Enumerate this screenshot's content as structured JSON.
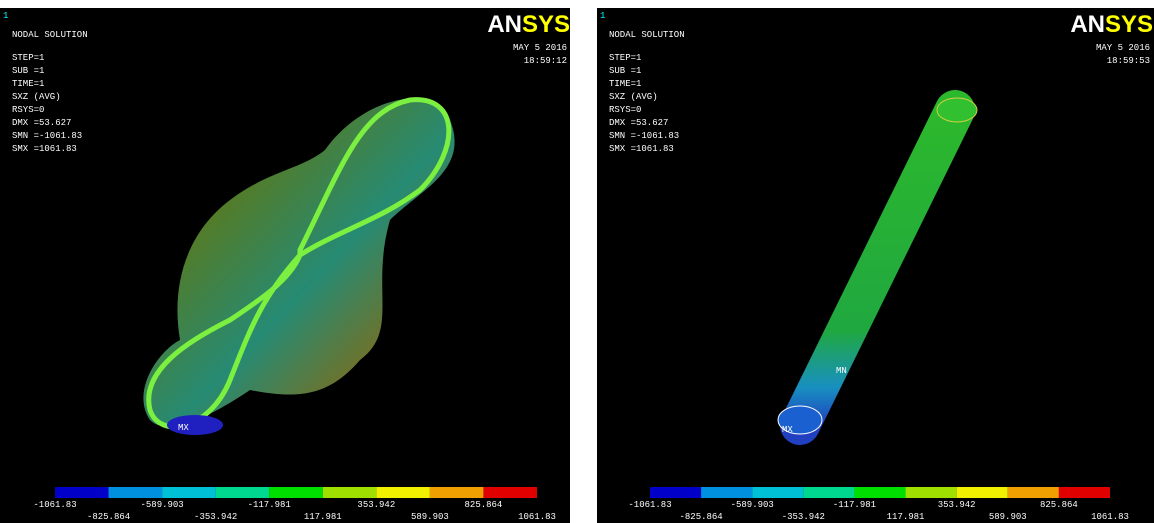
{
  "panels": [
    {
      "window_number": "1",
      "title": "NODAL SOLUTION",
      "info": [
        "STEP=1",
        "SUB =1",
        "TIME=1",
        "SXZ      (AVG)",
        "RSYS=0",
        "DMX =53.627",
        "SMN =-1061.83",
        "SMX =1061.83"
      ],
      "date": "MAY  5 2016",
      "time": "18:59:12",
      "logo": "ANSYS",
      "markers": [
        "MX"
      ],
      "legend": [
        "-1061.83",
        "-825.864",
        "-589.903",
        "-353.942",
        "-117.981",
        "117.981",
        "353.942",
        "589.903",
        "825.864",
        "1061.83"
      ]
    },
    {
      "window_number": "1",
      "title": "NODAL SOLUTION",
      "info": [
        "STEP=1",
        "SUB =1",
        "TIME=1",
        "SXZ      (AVG)",
        "RSYS=0",
        "DMX =53.627",
        "SMN =-1061.83",
        "SMX =1061.83"
      ],
      "date": "MAY  5 2016",
      "time": "18:59:53",
      "logo": "ANSYS",
      "markers": [
        "MX",
        "MN"
      ],
      "legend": [
        "-1061.83",
        "-825.864",
        "-589.903",
        "-353.942",
        "-117.981",
        "117.981",
        "353.942",
        "589.903",
        "825.864",
        "1061.83"
      ]
    }
  ]
}
